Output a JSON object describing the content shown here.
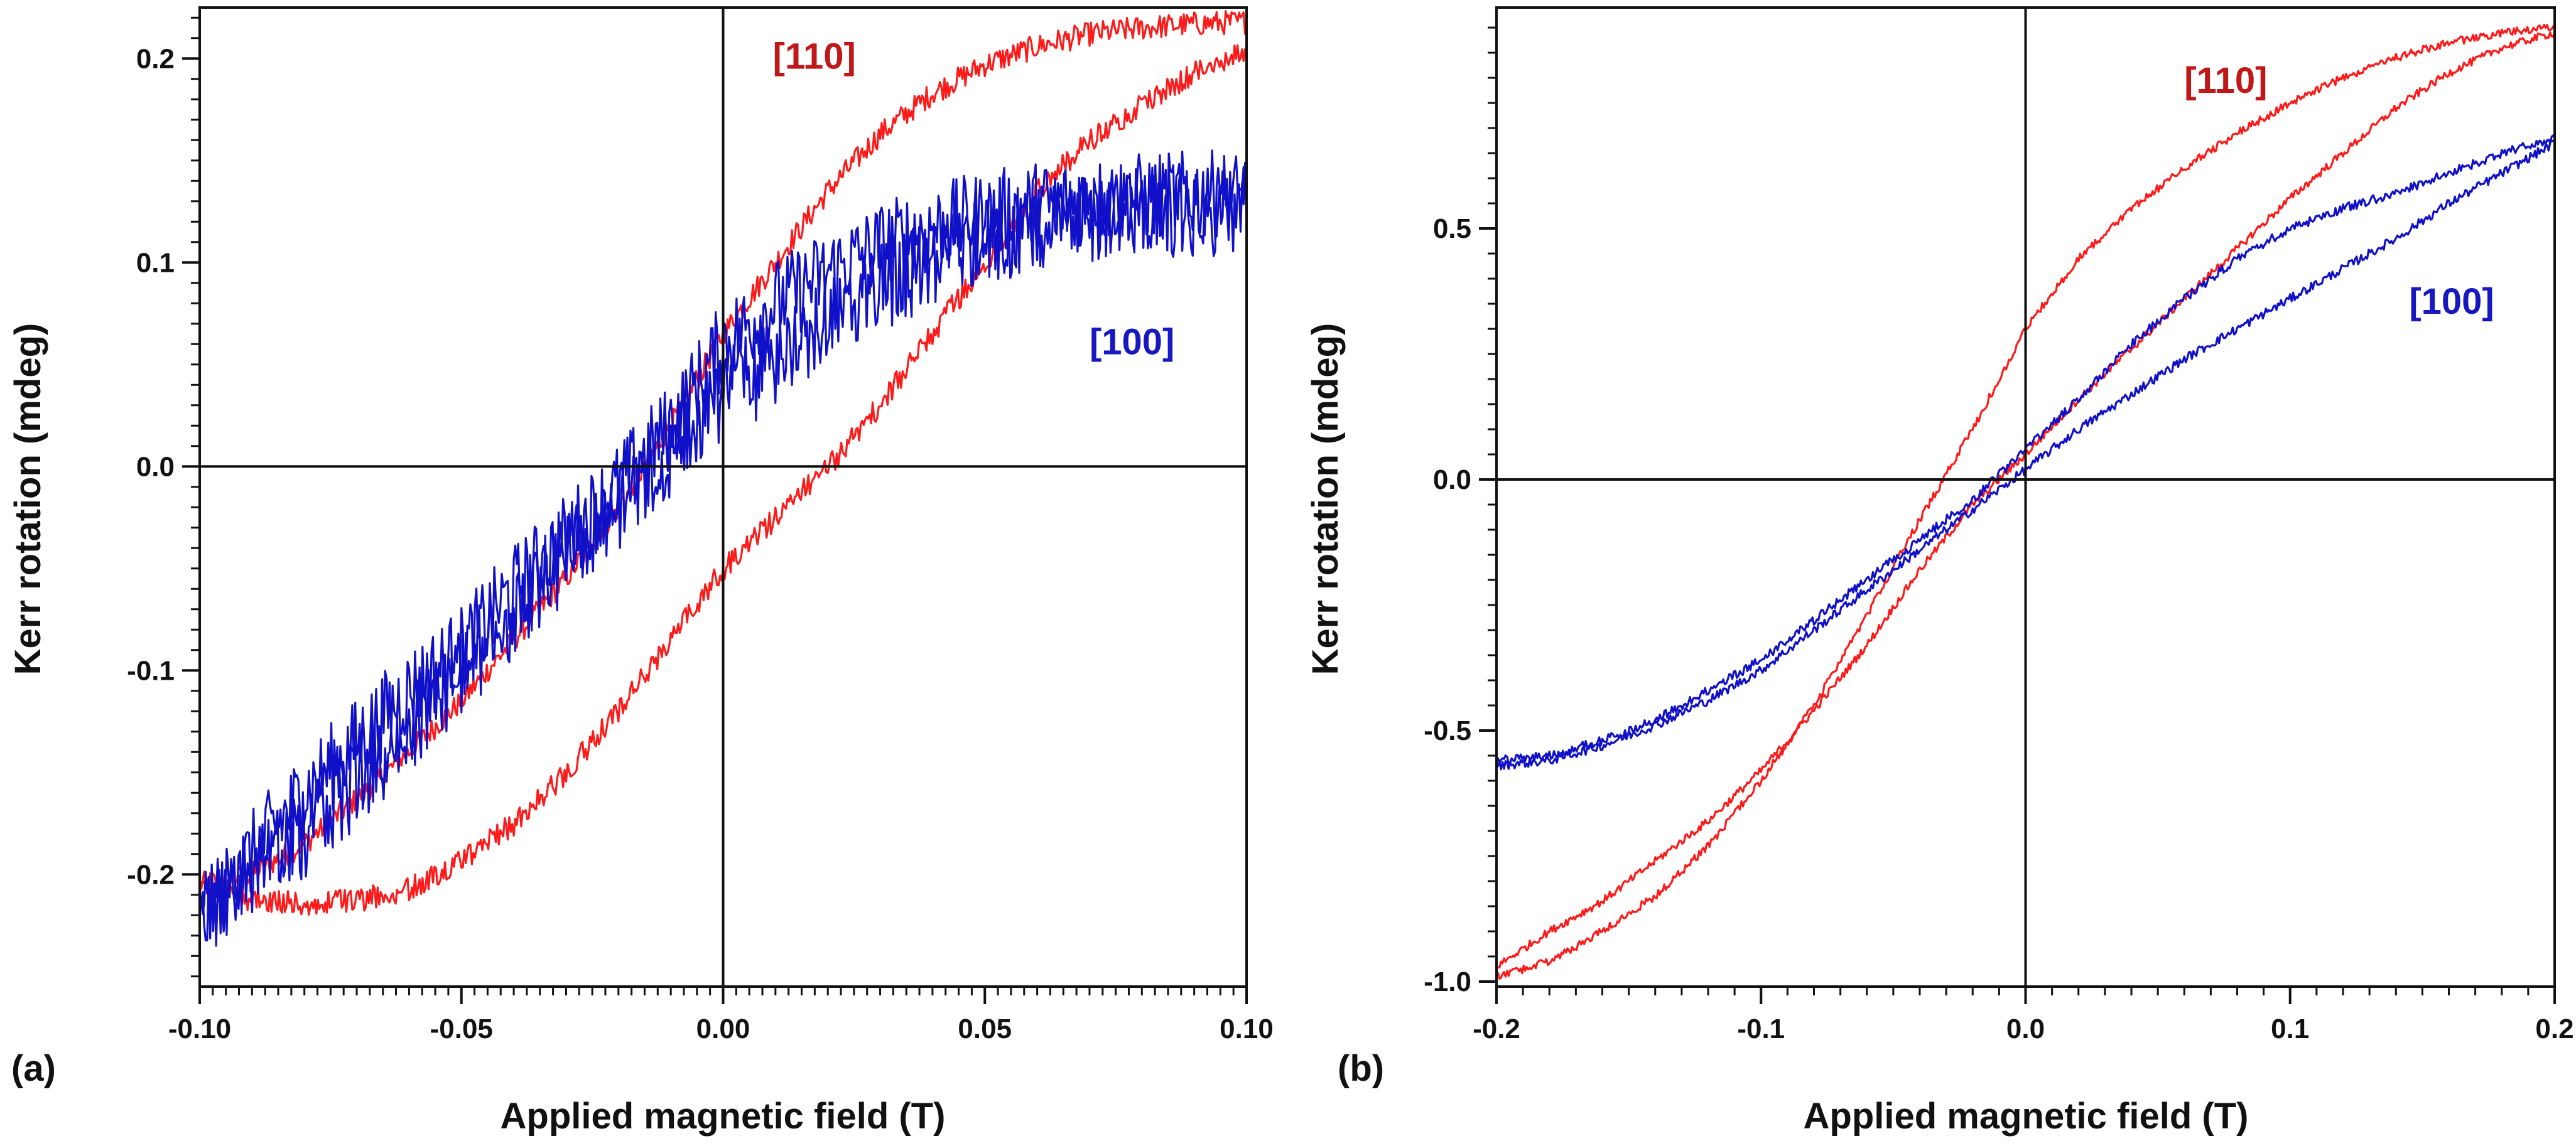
{
  "colors": {
    "red": "#ff1a1a",
    "red_label": "#c01818",
    "blue": "#1010c8",
    "blue_label": "#1818c0",
    "axis": "#111111"
  },
  "chart_data": [
    {
      "type": "line",
      "panel_label": "(a)",
      "xlabel": "Applied magnetic field (T)",
      "ylabel": "Kerr rotation (mdeg)",
      "xlim": [
        -0.1,
        0.1
      ],
      "ylim": [
        -0.255,
        0.225
      ],
      "xticks": [
        -0.1,
        -0.05,
        0.0,
        0.05,
        0.1
      ],
      "xtick_labels": [
        "-0.10",
        "-0.05",
        "0.00",
        "0.05",
        "0.10"
      ],
      "yticks": [
        -0.2,
        -0.1,
        0.0,
        0.1,
        0.2
      ],
      "ytick_labels": [
        "-0.2",
        "-0.1",
        "0.0",
        "0.1",
        "0.2"
      ],
      "series": [
        {
          "name": "[110]",
          "color": "red",
          "noise": 0.006,
          "label_at": [
            0.0095,
            0.195
          ],
          "branches": [
            {
              "x": [
                -0.1,
                -0.09,
                -0.08,
                -0.07,
                -0.06,
                -0.05,
                -0.04,
                -0.03,
                -0.02,
                -0.01,
                0.0,
                0.01,
                0.02,
                0.03,
                0.04,
                0.05,
                0.06,
                0.07,
                0.08,
                0.09,
                0.1
              ],
              "y": [
                -0.205,
                -0.2,
                -0.185,
                -0.163,
                -0.14,
                -0.115,
                -0.085,
                -0.055,
                -0.02,
                0.02,
                0.065,
                0.1,
                0.135,
                0.163,
                0.183,
                0.197,
                0.206,
                0.212,
                0.215,
                0.217,
                0.218
              ]
            },
            {
              "x": [
                0.1,
                0.09,
                0.08,
                0.07,
                0.06,
                0.05,
                0.04,
                0.03,
                0.02,
                0.01,
                0.0,
                -0.01,
                -0.02,
                -0.03,
                -0.04,
                -0.05,
                -0.06,
                -0.07,
                -0.08,
                -0.09,
                -0.1
              ],
              "y": [
                0.205,
                0.193,
                0.178,
                0.16,
                0.135,
                0.1,
                0.065,
                0.03,
                -0.0,
                -0.025,
                -0.05,
                -0.085,
                -0.12,
                -0.15,
                -0.175,
                -0.193,
                -0.207,
                -0.213,
                -0.215,
                -0.212,
                -0.207
              ]
            }
          ]
        },
        {
          "name": "[100]",
          "color": "blue",
          "noise": 0.022,
          "label_at": [
            0.07,
            0.055
          ],
          "branches": [
            {
              "x": [
                -0.1,
                -0.09,
                -0.08,
                -0.07,
                -0.06,
                -0.05,
                -0.04,
                -0.03,
                -0.02,
                -0.01,
                0.0,
                0.01,
                0.02,
                0.03,
                0.04,
                0.05,
                0.06,
                0.07,
                0.08,
                0.09,
                0.1
              ],
              "y": [
                -0.225,
                -0.19,
                -0.16,
                -0.135,
                -0.11,
                -0.09,
                -0.06,
                -0.035,
                -0.01,
                0.02,
                0.06,
                0.08,
                0.095,
                0.108,
                0.117,
                0.123,
                0.128,
                0.13,
                0.132,
                0.133,
                0.133
              ]
            },
            {
              "x": [
                0.1,
                0.09,
                0.08,
                0.07,
                0.06,
                0.05,
                0.04,
                0.03,
                0.02,
                0.01,
                0.0,
                -0.01,
                -0.02,
                -0.03,
                -0.04,
                -0.05,
                -0.06,
                -0.07,
                -0.08,
                -0.09,
                -0.1
              ],
              "y": [
                0.125,
                0.125,
                0.124,
                0.122,
                0.118,
                0.11,
                0.1,
                0.088,
                0.07,
                0.05,
                0.035,
                0.005,
                -0.02,
                -0.045,
                -0.075,
                -0.1,
                -0.13,
                -0.155,
                -0.18,
                -0.2,
                -0.22
              ]
            }
          ]
        }
      ]
    },
    {
      "type": "line",
      "panel_label": "(b)",
      "xlabel": "Applied magnetic field (T)",
      "ylabel": "Kerr rotation (mdeg)",
      "xlim": [
        -0.2,
        0.2
      ],
      "ylim": [
        -1.01,
        0.94
      ],
      "xticks": [
        -0.2,
        -0.1,
        0.0,
        0.1,
        0.2
      ],
      "xtick_labels": [
        "-0.2",
        "-0.1",
        "0.0",
        "0.1",
        "0.2"
      ],
      "yticks": [
        -1.0,
        -0.5,
        0.0,
        0.5
      ],
      "ytick_labels": [
        "-1.0",
        "-0.5",
        "0.0",
        "0.5"
      ],
      "series": [
        {
          "name": "[110]",
          "color": "red",
          "noise": 0.008,
          "label_at": [
            0.06,
            0.77
          ],
          "branches": [
            {
              "x": [
                -0.2,
                -0.18,
                -0.16,
                -0.14,
                -0.12,
                -0.1,
                -0.08,
                -0.06,
                -0.04,
                -0.02,
                0.0,
                0.02,
                0.04,
                0.06,
                0.08,
                0.1,
                0.12,
                0.14,
                0.16,
                0.18,
                0.2
              ],
              "y": [
                -0.97,
                -0.9,
                -0.84,
                -0.76,
                -0.68,
                -0.58,
                -0.46,
                -0.33,
                -0.18,
                -0.05,
                0.05,
                0.16,
                0.26,
                0.36,
                0.46,
                0.56,
                0.65,
                0.74,
                0.81,
                0.86,
                0.89
              ]
            },
            {
              "x": [
                0.2,
                0.18,
                0.16,
                0.14,
                0.12,
                0.1,
                0.08,
                0.06,
                0.04,
                0.02,
                0.0,
                -0.02,
                -0.04,
                -0.06,
                -0.08,
                -0.1,
                -0.12,
                -0.14,
                -0.16,
                -0.18,
                -0.2
              ],
              "y": [
                0.9,
                0.89,
                0.87,
                0.84,
                0.8,
                0.75,
                0.69,
                0.62,
                0.54,
                0.44,
                0.3,
                0.1,
                -0.08,
                -0.27,
                -0.45,
                -0.6,
                -0.73,
                -0.83,
                -0.9,
                -0.96,
                -0.99
              ]
            }
          ]
        },
        {
          "name": "[100]",
          "color": "blue",
          "noise": 0.009,
          "label_at": [
            0.145,
            0.33
          ],
          "branches": [
            {
              "x": [
                -0.2,
                -0.18,
                -0.16,
                -0.14,
                -0.12,
                -0.1,
                -0.08,
                -0.06,
                -0.04,
                -0.02,
                0.0,
                0.02,
                0.04,
                0.06,
                0.08,
                0.1,
                0.12,
                0.14,
                0.16,
                0.18,
                0.2
              ],
              "y": [
                -0.57,
                -0.56,
                -0.53,
                -0.49,
                -0.44,
                -0.38,
                -0.3,
                -0.22,
                -0.14,
                -0.06,
                0.02,
                0.1,
                0.17,
                0.24,
                0.3,
                0.36,
                0.42,
                0.48,
                0.55,
                0.61,
                0.67
              ]
            },
            {
              "x": [
                0.2,
                0.18,
                0.16,
                0.14,
                0.12,
                0.1,
                0.08,
                0.06,
                0.04,
                0.02,
                0.0,
                -0.02,
                -0.04,
                -0.06,
                -0.08,
                -0.1,
                -0.12,
                -0.14,
                -0.16,
                -0.18,
                -0.2
              ],
              "y": [
                0.68,
                0.65,
                0.61,
                0.57,
                0.54,
                0.5,
                0.44,
                0.36,
                0.27,
                0.16,
                0.06,
                -0.04,
                -0.12,
                -0.2,
                -0.28,
                -0.36,
                -0.42,
                -0.48,
                -0.52,
                -0.55,
                -0.56
              ]
            }
          ]
        }
      ]
    }
  ]
}
